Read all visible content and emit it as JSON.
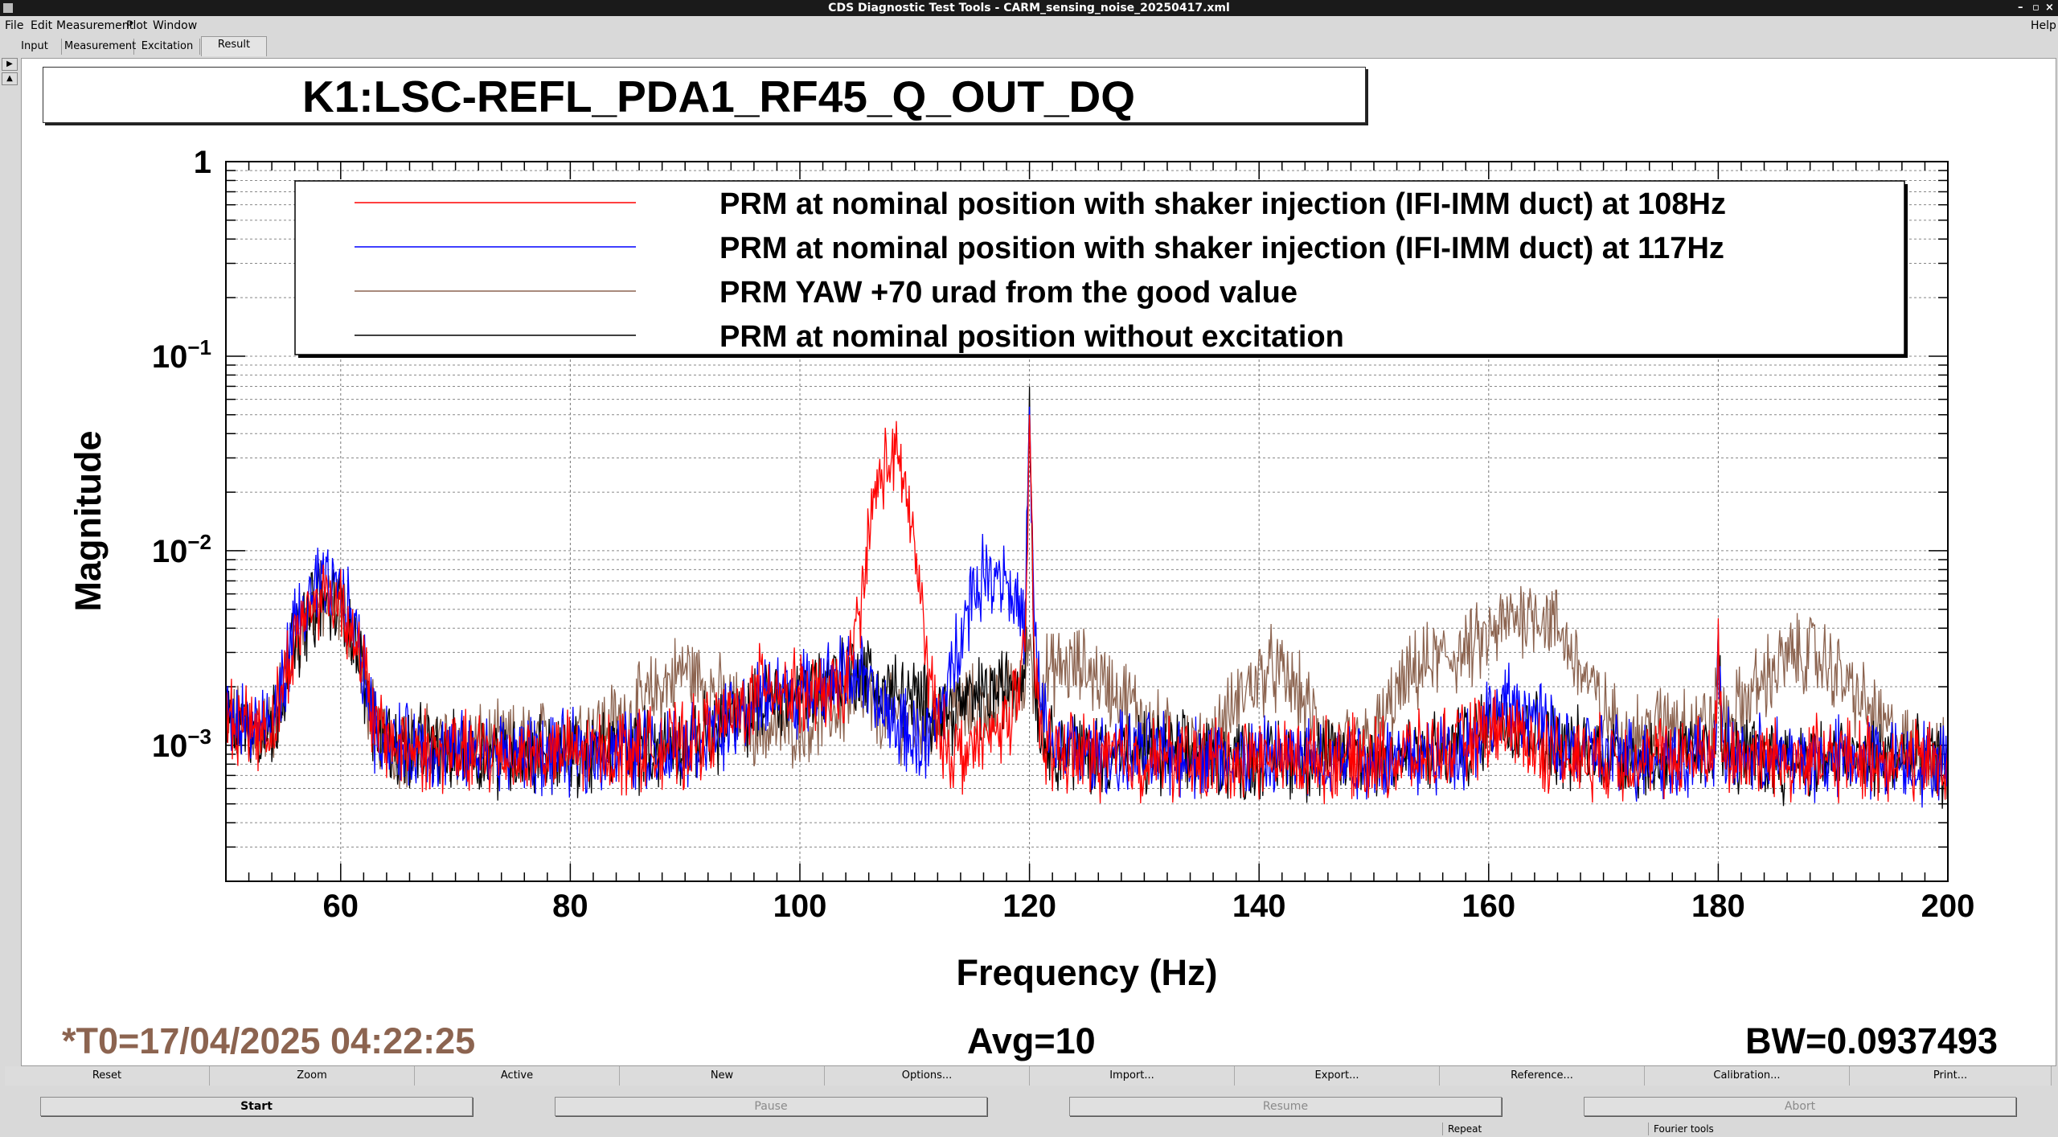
{
  "window": {
    "title": "CDS Diagnostic Test Tools - CARM_sensing_noise_20250417.xml",
    "help_label": "Help"
  },
  "menu": [
    "File",
    "Edit",
    "Measurement",
    "Plot",
    "Window"
  ],
  "tabs": [
    "Input",
    "Measurement",
    "Excitation",
    "Result"
  ],
  "active_tab": "Result",
  "plot": {
    "channel": "K1:LSC-REFL_PDA1_RF45_Q_OUT_DQ",
    "t0": "*T0=17/04/2025 04:22:25",
    "avg": "Avg=10",
    "bw": "BW=0.0937493",
    "t0_color": "#8c6450"
  },
  "chart_data": {
    "type": "line",
    "title": "K1:LSC-REFL_PDA1_RF45_Q_OUT_DQ",
    "xlabel": "Frequency (Hz)",
    "ylabel": "Magnitude",
    "xlim": [
      50,
      200
    ],
    "ylim": [
      0.0002,
      1
    ],
    "yscale": "log",
    "grid": true,
    "legend_position": "top-right",
    "x_ticks": [
      60,
      80,
      100,
      120,
      140,
      160,
      180,
      200
    ],
    "y_ticks": [
      {
        "value": 1,
        "base": "1",
        "exp": ""
      },
      {
        "value": 0.1,
        "base": "10",
        "exp": "−1"
      },
      {
        "value": 0.01,
        "base": "10",
        "exp": "−2"
      },
      {
        "value": 0.001,
        "base": "10",
        "exp": "−3"
      }
    ],
    "noise_floor": 0.00085,
    "series": [
      {
        "name": "PRM at nominal position with shaker injection (IFI-IMM duct) at 108Hz",
        "color": "#ff0000",
        "x": [
          50,
          54,
          56,
          58,
          60,
          61,
          62,
          63,
          65,
          70,
          80,
          90,
          95,
          97,
          100,
          103,
          104,
          105,
          106,
          107,
          108,
          109,
          110,
          111,
          112,
          113,
          114,
          116,
          118,
          119,
          119.6,
          120,
          120.4,
          121,
          122,
          125,
          130,
          140,
          150,
          155,
          158,
          160,
          162,
          164,
          166,
          170,
          175,
          179.7,
          180,
          180.3,
          185,
          190,
          195,
          200
        ],
        "y": [
          0.0014,
          0.0012,
          0.0035,
          0.006,
          0.0055,
          0.004,
          0.0025,
          0.0012,
          0.001,
          0.0009,
          0.0009,
          0.001,
          0.0015,
          0.0022,
          0.0018,
          0.0018,
          0.002,
          0.004,
          0.012,
          0.025,
          0.03,
          0.025,
          0.01,
          0.003,
          0.0012,
          0.001,
          0.0009,
          0.001,
          0.0014,
          0.0018,
          0.0025,
          0.05,
          0.003,
          0.0012,
          0.0009,
          0.0009,
          0.00085,
          0.00085,
          0.00085,
          0.0009,
          0.001,
          0.0012,
          0.0012,
          0.001,
          0.0009,
          0.00085,
          0.00085,
          0.0009,
          0.0045,
          0.0009,
          0.00085,
          0.00085,
          0.00085,
          0.0008
        ]
      },
      {
        "name": "PRM at nominal position with shaker injection (IFI-IMM duct) at 117Hz",
        "color": "#0000ff",
        "x": [
          50,
          54,
          56,
          58,
          60,
          61,
          62,
          63,
          65,
          70,
          80,
          90,
          95,
          98,
          100,
          103,
          105,
          107,
          109,
          111,
          113,
          114,
          115,
          116,
          117,
          118,
          119,
          119.6,
          120,
          120.4,
          121,
          122,
          125,
          130,
          140,
          150,
          155,
          158,
          160,
          162,
          164,
          166,
          170,
          175,
          179.7,
          180,
          180.3,
          185,
          190,
          195,
          200
        ],
        "y": [
          0.0014,
          0.0012,
          0.004,
          0.0065,
          0.006,
          0.0045,
          0.0025,
          0.0012,
          0.001,
          0.0009,
          0.0009,
          0.001,
          0.0014,
          0.002,
          0.0018,
          0.0022,
          0.0025,
          0.0015,
          0.0012,
          0.001,
          0.002,
          0.004,
          0.006,
          0.0075,
          0.008,
          0.0075,
          0.005,
          0.004,
          0.055,
          0.004,
          0.0015,
          0.001,
          0.0009,
          0.0009,
          0.00085,
          0.00085,
          0.0009,
          0.001,
          0.0014,
          0.0016,
          0.0014,
          0.001,
          0.0009,
          0.00085,
          0.0009,
          0.0042,
          0.0009,
          0.00085,
          0.00085,
          0.00085,
          0.0008
        ]
      },
      {
        "name": "PRM YAW +70 urad from the good value",
        "color": "#8c6450",
        "x": [
          50,
          54,
          56,
          58,
          60,
          61,
          62,
          63,
          65,
          70,
          75,
          80,
          85,
          88,
          90,
          92,
          95,
          97,
          100,
          103,
          105,
          107,
          110,
          113,
          116,
          118,
          119.6,
          120,
          120.4,
          121,
          123,
          125,
          127,
          129,
          131,
          133,
          135,
          137,
          139,
          141,
          143,
          145,
          147,
          150,
          152,
          154,
          156,
          158,
          160,
          162,
          164,
          166,
          168,
          170,
          172,
          174,
          176,
          178,
          179.7,
          180,
          180.3,
          182,
          184,
          186,
          188,
          190,
          192,
          194,
          196,
          198,
          200
        ],
        "y": [
          0.0013,
          0.0012,
          0.0035,
          0.0055,
          0.005,
          0.004,
          0.0022,
          0.0012,
          0.001,
          0.001,
          0.001,
          0.0011,
          0.0014,
          0.002,
          0.0025,
          0.002,
          0.0014,
          0.0012,
          0.0013,
          0.0015,
          0.0018,
          0.0015,
          0.0013,
          0.0015,
          0.0016,
          0.0018,
          0.002,
          0.004,
          0.002,
          0.0022,
          0.0025,
          0.0025,
          0.002,
          0.0016,
          0.0012,
          0.001,
          0.0009,
          0.0013,
          0.002,
          0.0025,
          0.002,
          0.0013,
          0.0009,
          0.0011,
          0.0018,
          0.0025,
          0.0028,
          0.003,
          0.0035,
          0.0045,
          0.005,
          0.004,
          0.0025,
          0.0015,
          0.0011,
          0.0012,
          0.0014,
          0.0013,
          0.0013,
          0.003,
          0.0013,
          0.0016,
          0.0022,
          0.0028,
          0.003,
          0.0025,
          0.0018,
          0.0013,
          0.001,
          0.0009,
          0.0008
        ]
      },
      {
        "name": "PRM at nominal position without excitation",
        "color": "#000000",
        "x": [
          50,
          54,
          56,
          58,
          60,
          61,
          62,
          63,
          65,
          70,
          80,
          90,
          95,
          98,
          100,
          103,
          105,
          107,
          110,
          113,
          116,
          118,
          119.6,
          120,
          120.4,
          121,
          122,
          125,
          130,
          140,
          150,
          155,
          158,
          160,
          162,
          164,
          166,
          170,
          175,
          179.7,
          180,
          180.3,
          185,
          190,
          195,
          200
        ],
        "y": [
          0.0013,
          0.0012,
          0.0035,
          0.0055,
          0.005,
          0.004,
          0.0022,
          0.0012,
          0.001,
          0.0009,
          0.0009,
          0.001,
          0.0014,
          0.0018,
          0.0018,
          0.0022,
          0.0025,
          0.002,
          0.0017,
          0.0015,
          0.0018,
          0.002,
          0.0025,
          0.07,
          0.0025,
          0.0012,
          0.001,
          0.0009,
          0.0009,
          0.00085,
          0.00085,
          0.0009,
          0.001,
          0.0013,
          0.0014,
          0.0012,
          0.001,
          0.0009,
          0.00085,
          0.0009,
          0.0038,
          0.0009,
          0.00085,
          0.00085,
          0.00085,
          0.0008
        ]
      }
    ]
  },
  "buttons_row1": [
    "Reset",
    "Zoom",
    "Active",
    "New",
    "Options...",
    "Import...",
    "Export...",
    "Reference...",
    "Calibration...",
    "Print..."
  ],
  "buttons_row2": [
    {
      "label": "Start",
      "enabled": true
    },
    {
      "label": "Pause",
      "enabled": false
    },
    {
      "label": "Resume",
      "enabled": false
    },
    {
      "label": "Abort",
      "enabled": false
    }
  ],
  "statusbar": [
    "Repeat",
    "Fourier tools"
  ]
}
